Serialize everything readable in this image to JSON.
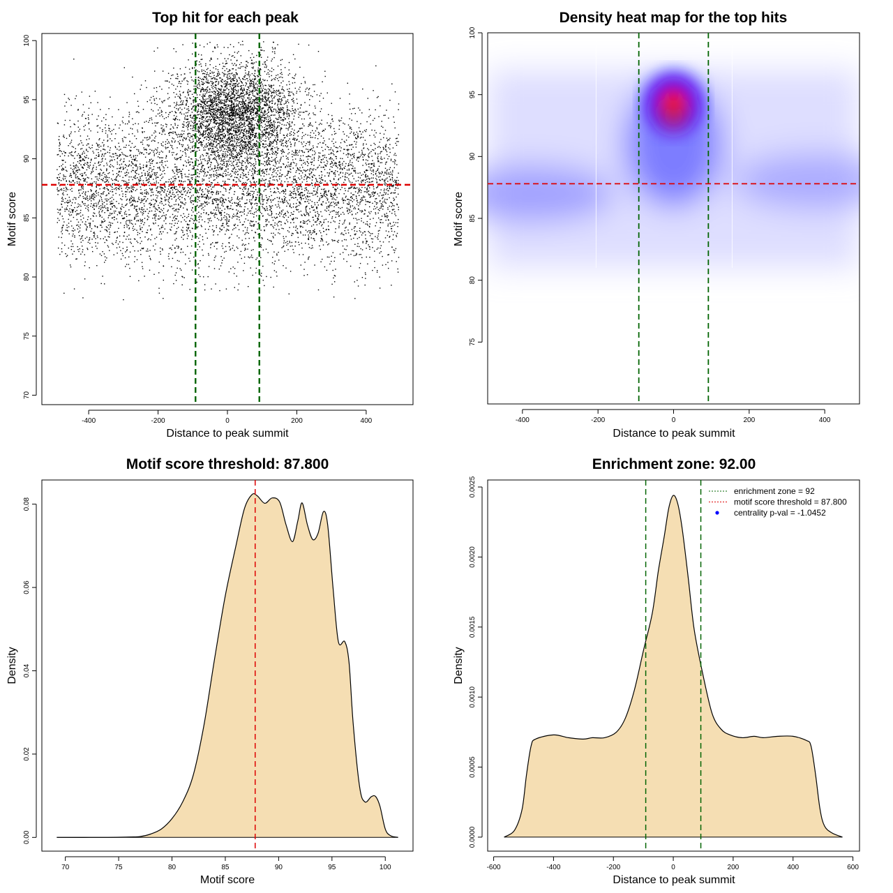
{
  "chart_data": [
    {
      "id": "scatter",
      "type": "scatter",
      "title": "Top hit for each peak",
      "xlabel": "Distance to peak summit",
      "ylabel": "Motif score",
      "xlim": [
        -535,
        535
      ],
      "ylim": [
        69.2,
        100.6
      ],
      "xticks": [
        -400,
        -200,
        0,
        200,
        400
      ],
      "yticks": [
        70,
        75,
        80,
        85,
        90,
        95,
        100
      ],
      "xtick_labels": [
        "-400",
        "-200",
        "0",
        "200",
        "400"
      ],
      "ytick_labels": [
        "70",
        "75",
        "80",
        "85",
        "90",
        "95",
        "100"
      ],
      "point_color": "#000000",
      "points_description_clusters": [
        {
          "x_center": 0,
          "x_spread": 500,
          "y_center": 87.5,
          "y_spread": 3.2,
          "weight": 0.62
        },
        {
          "x_center": 20,
          "x_spread": 90,
          "y_center": 94,
          "y_spread": 2.2,
          "weight": 0.38
        }
      ],
      "vlines": [
        {
          "x": -92,
          "color": "#006400"
        },
        {
          "x": 92,
          "color": "#006400"
        }
      ],
      "hlines": [
        {
          "y": 87.8,
          "color": "#dd0000"
        }
      ]
    },
    {
      "id": "heatmap",
      "type": "heatmap",
      "title": "Density heat map for the top hits",
      "xlabel": "Distance to peak summit",
      "ylabel": "Motif score",
      "xlim": [
        -492,
        492
      ],
      "ylim": [
        70,
        100
      ],
      "xticks": [
        -400,
        -200,
        0,
        200,
        400
      ],
      "yticks": [
        75,
        80,
        85,
        90,
        95,
        100
      ],
      "xtick_labels": [
        "-400",
        "-200",
        "0",
        "200",
        "400"
      ],
      "ytick_labels": [
        "75",
        "80",
        "85",
        "90",
        "95",
        "100"
      ],
      "colors": {
        "low": "#ffffff",
        "mid": "#0000ff",
        "high": "#ff0000"
      },
      "hotspot": {
        "x": 0,
        "y": 94.5
      },
      "vlines": [
        {
          "x": -92,
          "color": "#006400"
        },
        {
          "x": 92,
          "color": "#006400"
        }
      ],
      "hlines": [
        {
          "y": 87.8,
          "color": "#dd0000"
        }
      ]
    },
    {
      "id": "score_density",
      "type": "area",
      "title": "Motif score threshold: 87.800",
      "xlabel": "Motif score",
      "ylabel": "Density",
      "xlim": [
        67.8,
        102.6
      ],
      "ylim": [
        -0.0033,
        0.0858
      ],
      "xticks": [
        70,
        75,
        80,
        85,
        90,
        95,
        100
      ],
      "yticks": [
        0.0,
        0.02,
        0.04,
        0.06,
        0.08
      ],
      "xtick_labels": [
        "70",
        "75",
        "80",
        "85",
        "90",
        "95",
        "100"
      ],
      "ytick_labels": [
        "0.00",
        "0.02",
        "0.04",
        "0.06",
        "0.08"
      ],
      "fill_color": "#f5deb3",
      "x": [
        69.2,
        74,
        76,
        77,
        78,
        79,
        80,
        81,
        82,
        83,
        84,
        85,
        86,
        86.8,
        87.5,
        88,
        88.7,
        89.4,
        90.1,
        90.7,
        91.3,
        91.8,
        92.2,
        92.7,
        93.2,
        93.7,
        94.2,
        94.6,
        95.1,
        95.6,
        96.2,
        96.6,
        97,
        97.6,
        98.1,
        98.7,
        99.1,
        99.5,
        100,
        100.5,
        101.2
      ],
      "y": [
        0.0,
        0.0,
        0.0001,
        0.0002,
        0.0008,
        0.002,
        0.0045,
        0.0085,
        0.015,
        0.027,
        0.043,
        0.058,
        0.07,
        0.079,
        0.0823,
        0.082,
        0.0802,
        0.0815,
        0.0805,
        0.075,
        0.071,
        0.076,
        0.0803,
        0.075,
        0.0715,
        0.073,
        0.0782,
        0.075,
        0.06,
        0.047,
        0.047,
        0.042,
        0.027,
        0.012,
        0.0085,
        0.0098,
        0.0098,
        0.0075,
        0.002,
        0.0004,
        0.0
      ],
      "vlines": [
        {
          "x": 87.8,
          "color": "#dd0000"
        }
      ]
    },
    {
      "id": "distance_density",
      "type": "area",
      "title": "Enrichment zone: 92.00",
      "xlabel": "Distance to peak summit",
      "ylabel": "Density",
      "xlim": [
        -620,
        622
      ],
      "ylim": [
        -0.0001,
        0.00255
      ],
      "xticks": [
        -600,
        -400,
        -200,
        0,
        200,
        400,
        600
      ],
      "yticks": [
        0.0,
        0.0005,
        0.001,
        0.0015,
        0.002,
        0.0025
      ],
      "xtick_labels": [
        "-600",
        "-400",
        "-200",
        "0",
        "200",
        "400",
        "600"
      ],
      "ytick_labels": [
        "0.0000",
        "0.0005",
        "0.0010",
        "0.0015",
        "0.0020",
        "0.0025"
      ],
      "fill_color": "#f5deb3",
      "x": [
        -565,
        -530,
        -505,
        -490,
        -475,
        -460,
        -400,
        -350,
        -300,
        -270,
        -230,
        -190,
        -160,
        -130,
        -100,
        -70,
        -50,
        -30,
        -15,
        0,
        15,
        30,
        50,
        70,
        100,
        130,
        160,
        190,
        230,
        270,
        300,
        350,
        400,
        445,
        460,
        475,
        490,
        505,
        530,
        565
      ],
      "y": [
        0.0,
        5e-05,
        0.0002,
        0.00045,
        0.00065,
        0.0007,
        0.00073,
        0.00071,
        0.0007,
        0.00071,
        0.00071,
        0.00075,
        0.00085,
        0.00105,
        0.00133,
        0.0016,
        0.0019,
        0.00215,
        0.00235,
        0.00244,
        0.00238,
        0.0022,
        0.00185,
        0.00148,
        0.00115,
        0.00088,
        0.00077,
        0.00073,
        0.00071,
        0.00072,
        0.00071,
        0.00072,
        0.00072,
        0.00069,
        0.00065,
        0.00045,
        0.0002,
        8e-05,
        3e-05,
        0.0
      ],
      "vlines": [
        {
          "x": -92,
          "color": "#006400"
        },
        {
          "x": 92,
          "color": "#006400"
        }
      ],
      "legend": {
        "position": "top-right",
        "entries": [
          {
            "label": "enrichment zone = 92",
            "color": "#006400",
            "kind": "dotted-line"
          },
          {
            "label": "motif score threshold = 87.800",
            "color": "#dd0000",
            "kind": "dotted-line"
          },
          {
            "label": "centrality p-val = -1.0452",
            "color": "#0000ff",
            "kind": "point"
          }
        ]
      }
    }
  ]
}
